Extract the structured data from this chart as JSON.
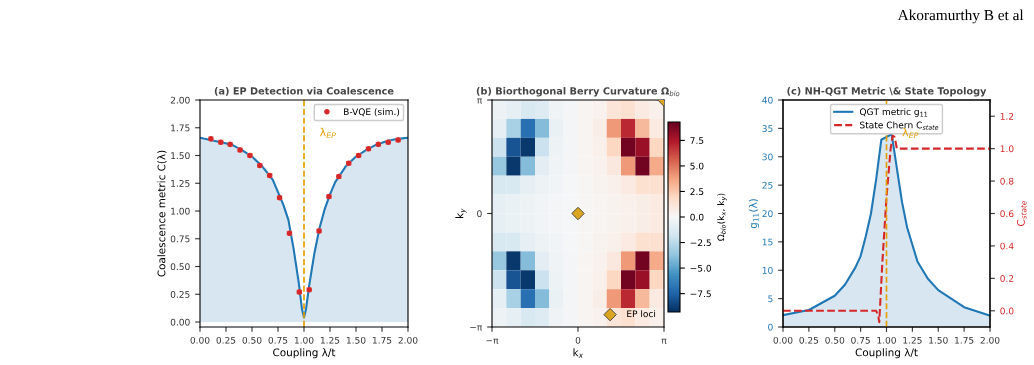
{
  "chart_data": [
    {
      "type": "area",
      "title": "(a) EP Detection via Coalescence",
      "xlabel": "Coupling λ/t",
      "ylabel": "Coalescence metric C(λ)",
      "series": [
        {
          "type": "area",
          "color": "#1f77b4",
          "x": [
            0,
            0.1,
            0.2,
            0.3,
            0.4,
            0.5,
            0.6,
            0.7,
            0.8,
            0.85,
            0.9,
            0.95,
            0.98,
            1.0,
            1.02,
            1.05,
            1.1,
            1.15,
            1.2,
            1.25,
            1.3,
            1.4,
            1.5,
            1.6,
            1.7,
            1.8,
            1.9,
            2.0
          ],
          "values": [
            1.66,
            1.64,
            1.62,
            1.6,
            1.55,
            1.49,
            1.4,
            1.28,
            1.06,
            0.92,
            0.66,
            0.35,
            0.12,
            0.04,
            0.12,
            0.33,
            0.62,
            0.85,
            1.02,
            1.15,
            1.26,
            1.4,
            1.49,
            1.55,
            1.6,
            1.63,
            1.65,
            1.66
          ]
        },
        {
          "type": "scatter",
          "name": "B-VQE (sim.)",
          "color": "#d62728",
          "x": [
            0.105,
            0.2,
            0.29,
            0.385,
            0.48,
            0.575,
            0.67,
            0.765,
            0.86,
            0.955,
            1.05,
            1.145,
            1.24,
            1.335,
            1.43,
            1.525,
            1.62,
            1.715,
            1.81,
            1.905
          ],
          "marker": "circle",
          "values": [
            1.65,
            1.62,
            1.6,
            1.55,
            1.5,
            1.41,
            1.32,
            1.12,
            0.8,
            0.27,
            0.29,
            0.82,
            1.13,
            1.31,
            1.43,
            1.5,
            1.56,
            1.6,
            1.62,
            1.64
          ],
          "errors": [
            0.015,
            0.015,
            0.015,
            0.015,
            0.015,
            0.015,
            0.015,
            0.015,
            0.015,
            0.015,
            0.015,
            0.015,
            0.015,
            0.015,
            0.015,
            0.015,
            0.015,
            0.015,
            0.015,
            0.015
          ]
        }
      ],
      "ref_lines": [
        {
          "axis": "x",
          "value": 1.0,
          "label": "λ$_{EP}$",
          "color": "#e69f00",
          "line_style": "dashed"
        }
      ],
      "xlim": [
        0,
        2
      ],
      "xticks": [
        {
          "value": 0,
          "label": "0.00"
        },
        {
          "value": 0.25,
          "label": "0.25"
        },
        {
          "value": 0.5,
          "label": "0.50"
        },
        {
          "value": 0.75,
          "label": "0.75"
        },
        {
          "value": 1,
          "label": "1.00"
        },
        {
          "value": 1.25,
          "label": "1.25"
        },
        {
          "value": 1.5,
          "label": "1.50"
        },
        {
          "value": 1.75,
          "label": "1.75"
        },
        {
          "value": 2,
          "label": "2.00"
        }
      ],
      "ylim": [
        -0.045,
        2.0
      ],
      "yticks": [
        {
          "value": 0,
          "label": "0.00"
        },
        {
          "value": 0.25,
          "label": "0.25"
        },
        {
          "value": 0.5,
          "label": "0.50"
        },
        {
          "value": 0.75,
          "label": "0.75"
        },
        {
          "value": 1,
          "label": "1.00"
        },
        {
          "value": 1.25,
          "label": "1.25"
        },
        {
          "value": 1.5,
          "label": "1.50"
        },
        {
          "value": 1.75,
          "label": "1.75"
        },
        {
          "value": 2,
          "label": "2.00"
        }
      ],
      "legend": "top right"
    },
    {
      "type": "heatmap",
      "title": "(b) Biorthogonal Berry Curvature Ω$_{bio}$",
      "xlabel": "k$_{x}$",
      "ylabel": "k$_{y}$",
      "clabel": "Ω$_{bio}$(k$_{x}$, k$_{y}$)",
      "xlim": [
        -3.1416,
        3.1416
      ],
      "xticks": [
        {
          "value": -3.1416,
          "label": "−π"
        },
        {
          "value": 0,
          "label": "0"
        },
        {
          "value": 3.1416,
          "label": "π"
        }
      ],
      "ylim": [
        -3.1416,
        3.1416
      ],
      "yticks": [
        {
          "value": -3.1416,
          "label": "−π"
        },
        {
          "value": 0,
          "label": "0"
        },
        {
          "value": 3.1416,
          "label": "π"
        }
      ],
      "clim": [
        -9.3,
        9.3
      ],
      "cticks": [
        {
          "value": -7.5,
          "label": "−7.5"
        },
        {
          "value": -5,
          "label": "−5.0"
        },
        {
          "value": -2.5,
          "label": "−2.5"
        },
        {
          "value": 0,
          "label": "0.0"
        },
        {
          "value": 2.5,
          "label": "2.5"
        },
        {
          "value": 5,
          "label": "5.0"
        },
        {
          "value": 7.5,
          "label": "7.5"
        }
      ],
      "cells": [
        [
          -0.5,
          -0.8,
          -1.5,
          -1.2,
          -0.4,
          -0.2,
          0.2,
          0.4,
          1.2,
          1.5,
          0.8,
          0.5
        ],
        [
          -0.8,
          -3,
          -7,
          -4,
          -0.6,
          -0.2,
          0.2,
          0.6,
          4,
          7,
          3,
          0.8
        ],
        [
          -2,
          -8,
          -9,
          -2,
          -0.5,
          -0.2,
          0.2,
          0.5,
          2,
          9,
          8,
          2
        ],
        [
          -3.5,
          -9,
          -4,
          -1,
          -0.4,
          -0.2,
          0.2,
          0.4,
          1,
          4,
          9,
          3.5
        ],
        [
          -1.5,
          -1.5,
          -0.8,
          -0.5,
          -0.3,
          -0.1,
          0.1,
          0.3,
          0.5,
          0.8,
          1.5,
          1.5
        ],
        [
          -0.8,
          -0.6,
          -0.5,
          -0.3,
          -0.2,
          -0.1,
          0.1,
          0.2,
          0.3,
          0.5,
          0.6,
          0.8
        ],
        [
          -0.8,
          -0.6,
          -0.5,
          -0.3,
          -0.2,
          -0.1,
          0.1,
          0.2,
          0.3,
          0.5,
          0.6,
          0.8
        ],
        [
          -1.5,
          -1.5,
          -0.8,
          -0.5,
          -0.3,
          -0.1,
          0.1,
          0.3,
          0.5,
          0.8,
          1.5,
          1.5
        ],
        [
          -3.5,
          -9,
          -4,
          -1,
          -0.4,
          -0.2,
          0.2,
          0.4,
          1,
          4,
          9,
          3.5
        ],
        [
          -2,
          -8,
          -9,
          -2,
          -0.5,
          -0.2,
          0.2,
          0.5,
          2,
          9,
          8,
          2
        ],
        [
          -0.8,
          -3,
          -7,
          -4,
          -0.6,
          -0.2,
          0.2,
          0.6,
          4,
          7,
          3,
          0.8
        ],
        [
          -0.5,
          -0.8,
          -1.5,
          -1.2,
          -0.4,
          -0.2,
          0.2,
          0.4,
          1.2,
          1.5,
          0.8,
          0.5
        ]
      ],
      "series": [
        {
          "type": "scatter",
          "name": "EP loci",
          "color": "#daa520",
          "marker": "diamond",
          "x": [
            0,
            3.14
          ],
          "values": [
            0,
            3.14
          ]
        }
      ],
      "legend": "bottom right"
    },
    {
      "type": "area",
      "title": "(c) NH-QGT Metric \\& State Topology",
      "xlabel": "Coupling λ/t",
      "ylabel": "g$_{11}$(λ)",
      "y2label": "C$_{state}$",
      "series": [
        {
          "type": "area",
          "name": "QGT metric g$_{11}$",
          "color": "#1f77b4",
          "x": [
            0,
            0.25,
            0.5,
            0.6,
            0.7,
            0.75,
            0.8,
            0.85,
            0.9,
            0.95,
            1.05,
            1.1,
            1.15,
            1.2,
            1.25,
            1.3,
            1.4,
            1.5,
            1.75,
            2.0
          ],
          "values": [
            2.1,
            3.0,
            5.5,
            7.5,
            10.5,
            12.5,
            16,
            20,
            26,
            33,
            34,
            28,
            22,
            17.5,
            14.5,
            11.5,
            8.5,
            6.5,
            3.5,
            2.0
          ]
        },
        {
          "type": "line",
          "name": "State Chern C$_{state}$",
          "color": "#d62728",
          "axis": "y2",
          "line_style": "dashed",
          "x": [
            0,
            0.9,
            0.92,
            0.93,
            0.96,
            1.0,
            1.04,
            1.06,
            1.08,
            1.1,
            2.0
          ],
          "values": [
            0,
            0,
            -0.03,
            -0.07,
            0.3,
            0.7,
            1.0,
            1.08,
            1.07,
            1.0,
            1.0
          ]
        }
      ],
      "ref_lines": [
        {
          "axis": "x",
          "value": 1.0,
          "label": "λ$_{EP}$",
          "color": "#e69f00",
          "line_style": "dashed"
        }
      ],
      "xlim": [
        0,
        2
      ],
      "xticks": [
        {
          "value": 0,
          "label": "0.00"
        },
        {
          "value": 0.25,
          "label": "0.25"
        },
        {
          "value": 0.5,
          "label": "0.50"
        },
        {
          "value": 0.75,
          "label": "0.75"
        },
        {
          "value": 1,
          "label": "1.00"
        },
        {
          "value": 1.25,
          "label": "1.25"
        },
        {
          "value": 1.5,
          "label": "1.50"
        },
        {
          "value": 1.75,
          "label": "1.75"
        },
        {
          "value": 2,
          "label": "2.00"
        }
      ],
      "ylim": [
        0,
        40
      ],
      "yticks": [
        0,
        5,
        10,
        15,
        20,
        25,
        30,
        35,
        40
      ],
      "y2lim": [
        -0.1,
        1.3
      ],
      "y2ticks": [
        {
          "value": 0,
          "label": "0.0"
        },
        {
          "value": 0.2,
          "label": "0.2"
        },
        {
          "value": 0.4,
          "label": "0.4"
        },
        {
          "value": 0.6,
          "label": "0.6"
        },
        {
          "value": 0.8,
          "label": "0.8"
        },
        {
          "value": 1.0,
          "label": "1.0"
        },
        {
          "value": 1.2,
          "label": "1.2"
        }
      ],
      "legend": "top",
      "annotations": [
        "Akoramurthy B et al"
      ]
    }
  ]
}
